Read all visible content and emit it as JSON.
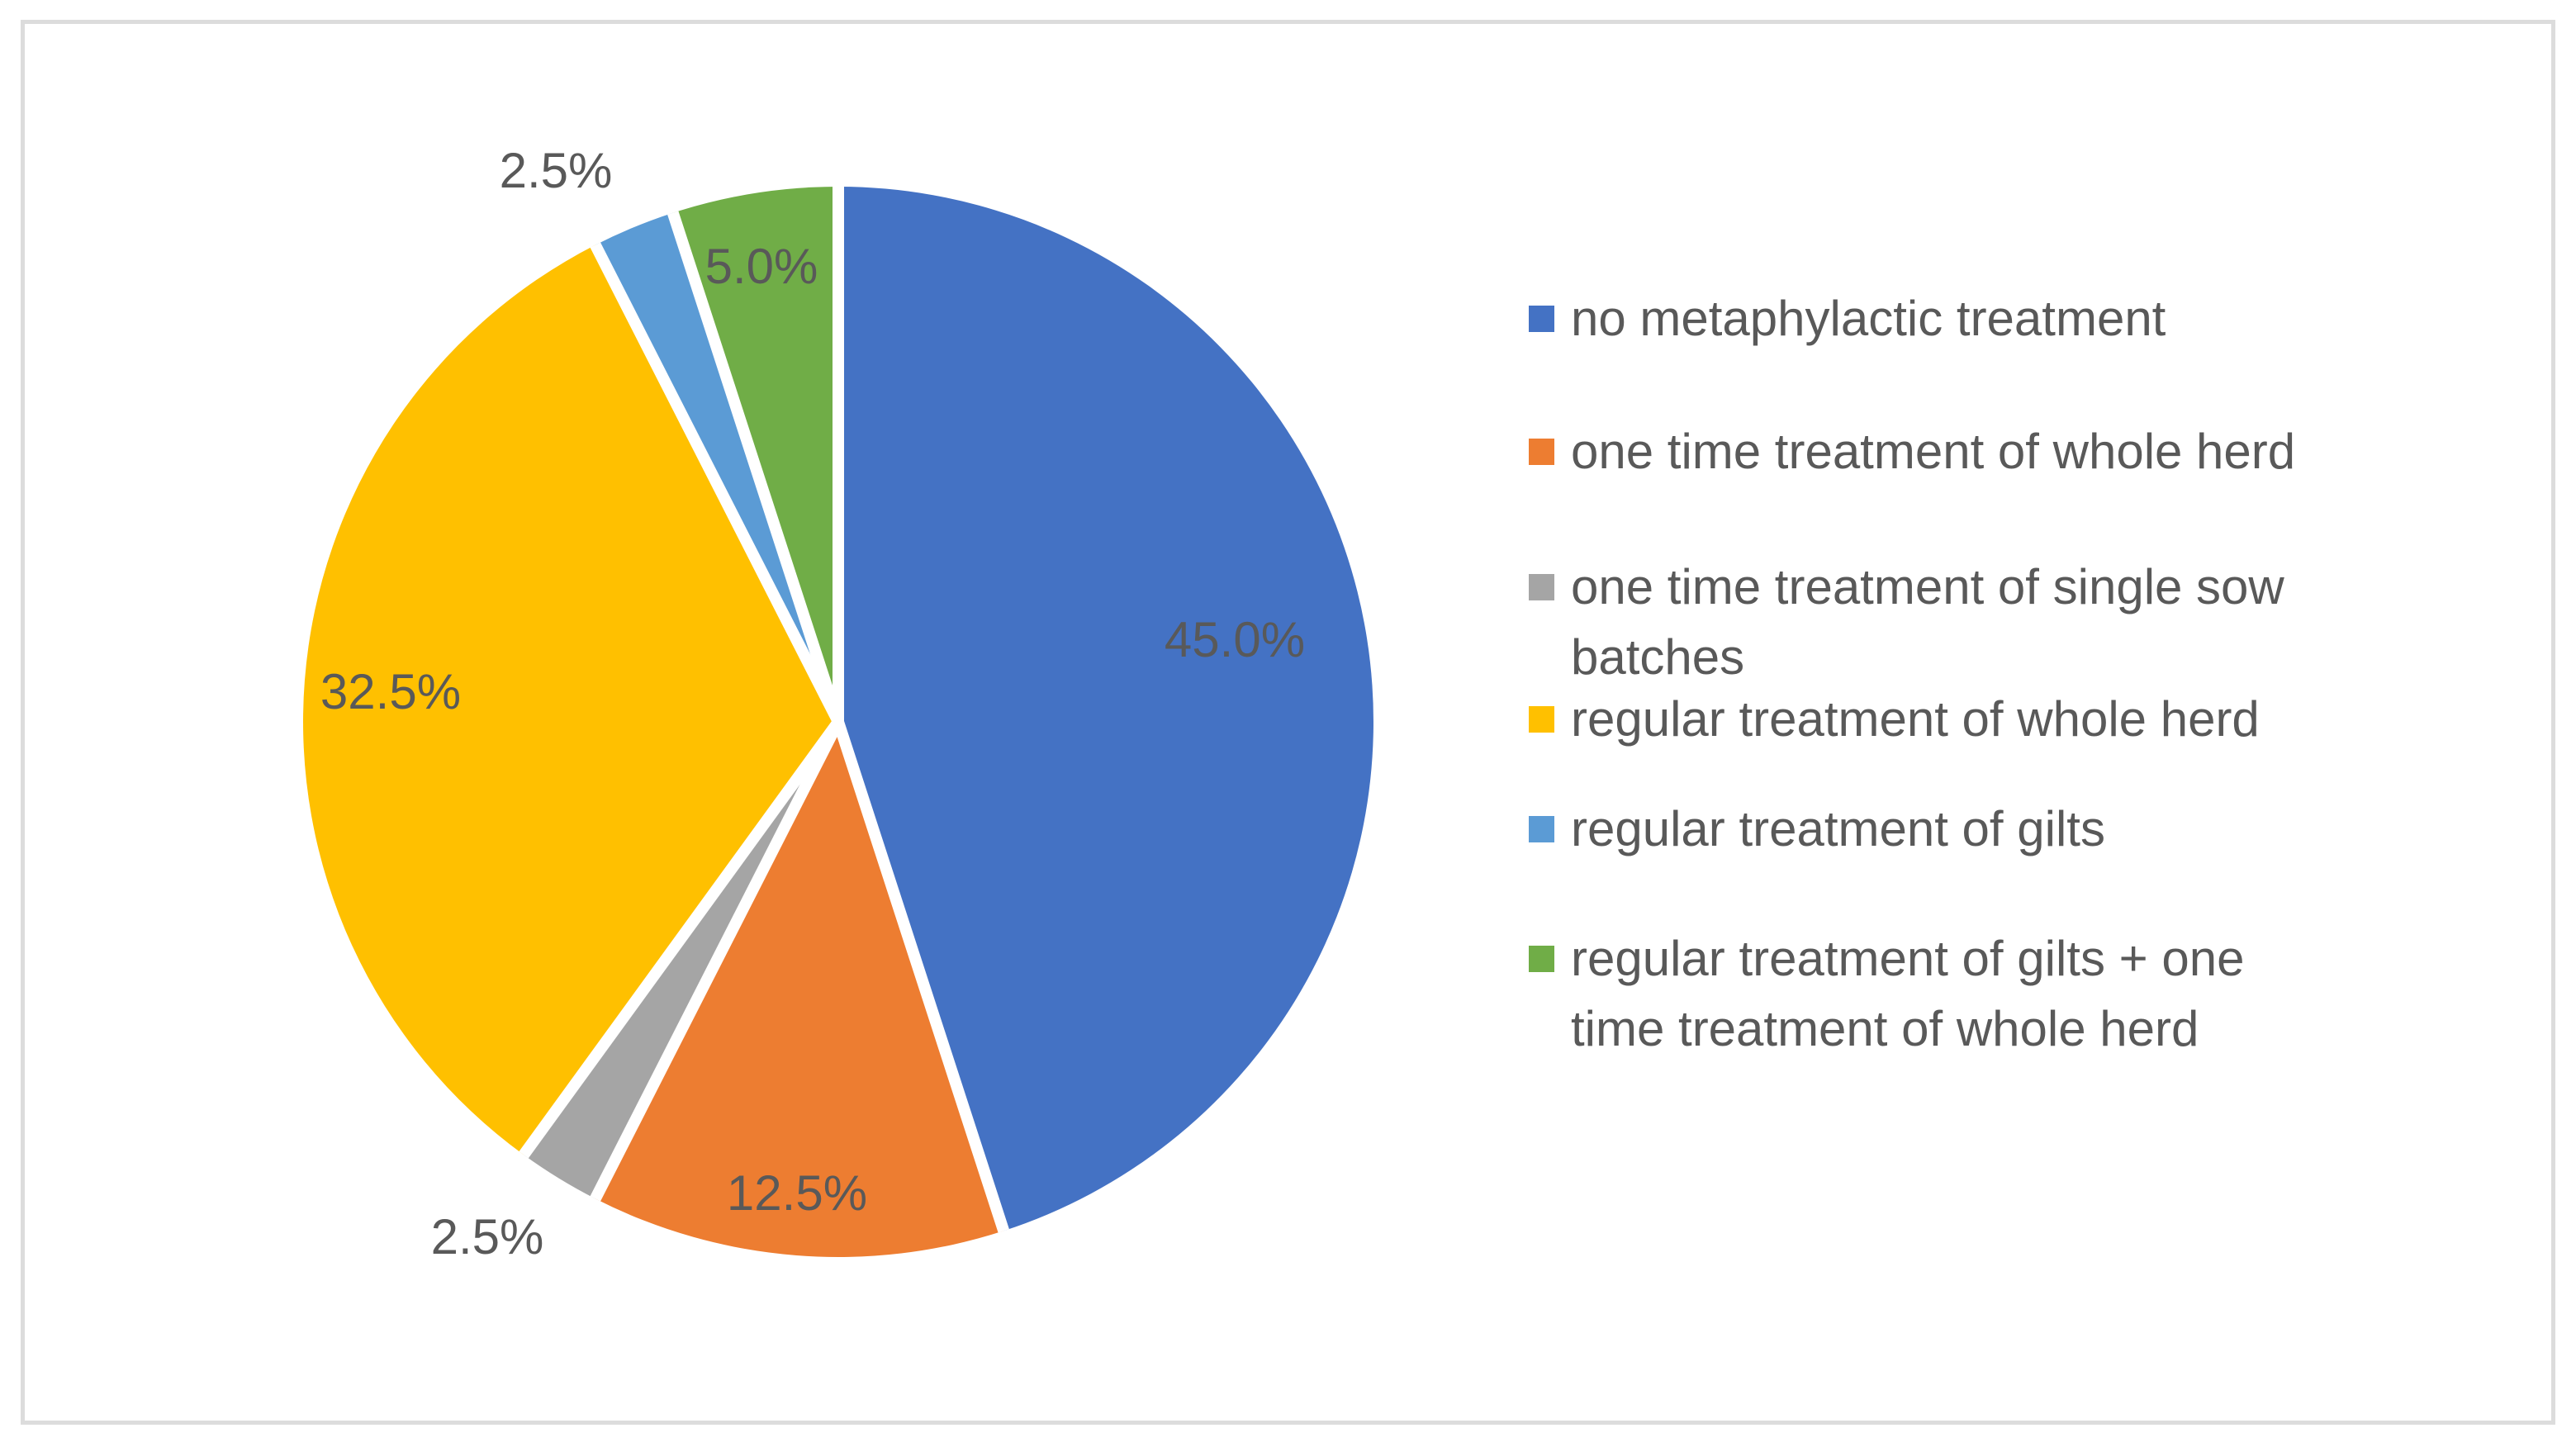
{
  "figure": {
    "background": "#ffffff",
    "frame_border_color": "#dcdcdc",
    "text_color": "#595959"
  },
  "chart_data": {
    "type": "pie",
    "title": "",
    "start_angle_deg": 0,
    "direction": "clockwise",
    "grid": false,
    "legend_position": "right",
    "label_color": "#595959",
    "separator_color": "#ffffff",
    "slices": [
      {
        "label": "no metaphylactic treatment",
        "legend_label": "no metaphylactic treatment",
        "value": 45.0,
        "data_label": "45.0%",
        "color": "#4472C4",
        "label_placement": "inside"
      },
      {
        "label": "one time treatment of whole herd",
        "legend_label": "one time treatment of whole herd",
        "value": 12.5,
        "data_label": "12.5%",
        "color": "#ED7D31",
        "label_placement": "inside"
      },
      {
        "label": "one time treatment of single sow batches",
        "legend_label": "one time treatment of single sow\nbatches",
        "value": 2.5,
        "data_label": "2.5%",
        "color": "#A5A5A5",
        "label_placement": "outside"
      },
      {
        "label": "regular treatment of whole herd",
        "legend_label": "regular treatment of whole herd",
        "value": 32.5,
        "data_label": "32.5%",
        "color": "#FFC000",
        "label_placement": "inside"
      },
      {
        "label": "regular treatment of gilts",
        "legend_label": "regular treatment of gilts",
        "value": 2.5,
        "data_label": "2.5%",
        "color": "#5B9BD5",
        "label_placement": "outside"
      },
      {
        "label": "regular treatment of gilts + one time treatment of whole herd",
        "legend_label": "regular treatment of gilts + one\ntime treatment of whole herd",
        "value": 5.0,
        "data_label": "5.0%",
        "color": "#70AD47",
        "label_placement": "inside"
      }
    ]
  }
}
